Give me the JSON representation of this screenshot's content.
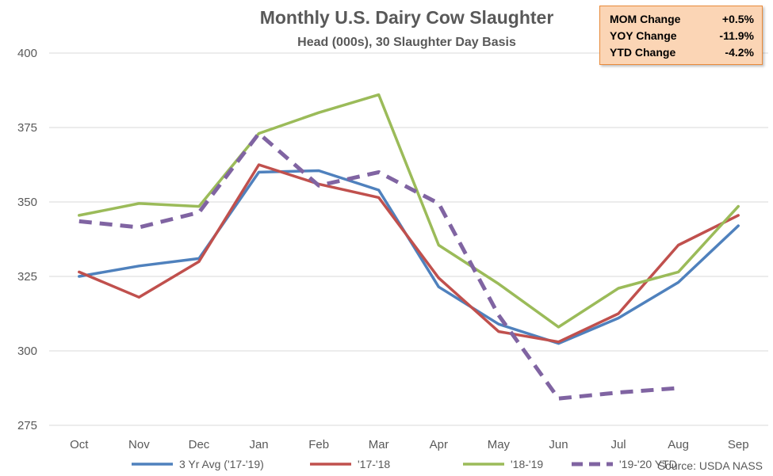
{
  "chart_data": {
    "type": "line",
    "title": "Monthly U.S. Dairy Cow Slaughter",
    "subtitle": "Head (000s), 30 Slaughter Day Basis",
    "categories": [
      "Oct",
      "Nov",
      "Dec",
      "Jan",
      "Feb",
      "Mar",
      "Apr",
      "May",
      "Jun",
      "Jul",
      "Aug",
      "Sep"
    ],
    "ylim": [
      275,
      400
    ],
    "yticks": [
      275,
      300,
      325,
      350,
      375,
      400
    ],
    "grid": true,
    "legend_position": "bottom",
    "series": [
      {
        "name": "3 Yr Avg ('17-'19)",
        "color": "#4f81bd",
        "dashed": false,
        "values": [
          325,
          328.5,
          331,
          360,
          360.5,
          354,
          321.5,
          309,
          302.5,
          311,
          323,
          342
        ]
      },
      {
        "name": "'17-'18",
        "color": "#c0504d",
        "dashed": false,
        "values": [
          326.5,
          318,
          330,
          362.5,
          356,
          351.5,
          324.5,
          306.5,
          303,
          312.5,
          335.5,
          345.5
        ]
      },
      {
        "name": "'18-'19",
        "color": "#9bbb59",
        "dashed": false,
        "values": [
          345.5,
          349.5,
          348.5,
          373,
          380,
          386,
          335.5,
          322.5,
          308,
          321,
          326.5,
          348.5
        ]
      },
      {
        "name": "'19-'20 YTD",
        "color": "#8064a2",
        "dashed": true,
        "values": [
          343.5,
          341.5,
          346.5,
          373,
          355.5,
          360,
          349.5,
          312,
          284,
          286,
          287.5,
          null
        ]
      }
    ],
    "source": "Source: USDA NASS",
    "stats": [
      {
        "label": "MOM Change",
        "value": "+0.5%"
      },
      {
        "label": "YOY Change",
        "value": "-11.9%"
      },
      {
        "label": "YTD Change",
        "value": "-4.2%"
      }
    ]
  }
}
